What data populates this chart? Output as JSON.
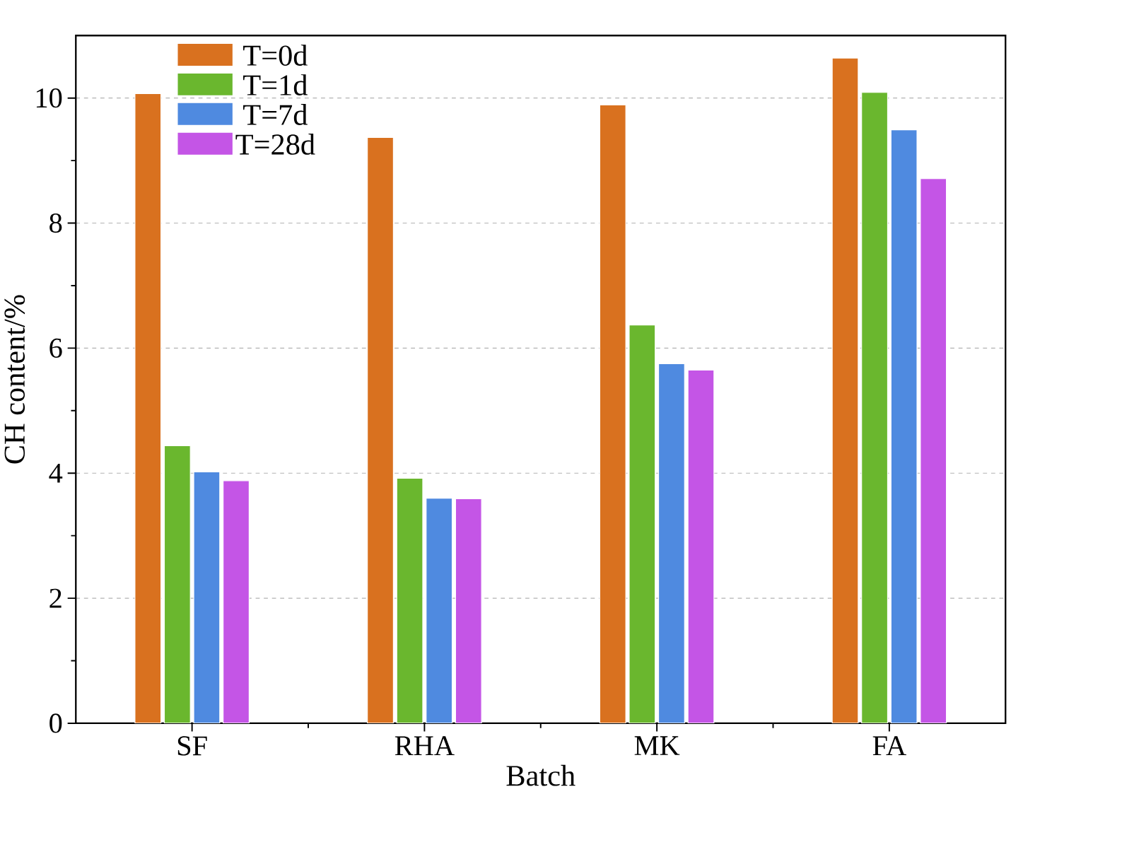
{
  "chart_data": {
    "type": "bar",
    "xlabel": "Batch",
    "ylabel": "CH content/%",
    "categories": [
      "SF",
      "RHA",
      "MK",
      "FA"
    ],
    "series": [
      {
        "name": "T=0d",
        "color": "#d9711f",
        "values": [
          10.07,
          9.37,
          9.89,
          10.64
        ]
      },
      {
        "name": "T=1d",
        "color": "#6ab72e",
        "values": [
          4.44,
          3.92,
          6.37,
          10.09
        ]
      },
      {
        "name": "T=7d",
        "color": "#4f8ae0",
        "values": [
          4.02,
          3.6,
          5.75,
          9.49
        ]
      },
      {
        "name": "T=28d",
        "color": "#c455e6",
        "values": [
          3.88,
          3.59,
          5.65,
          8.71
        ]
      }
    ],
    "ylim": [
      0,
      11
    ],
    "yticks": [
      0,
      2,
      4,
      6,
      8,
      10
    ],
    "grid": "y",
    "legend": "top left"
  }
}
